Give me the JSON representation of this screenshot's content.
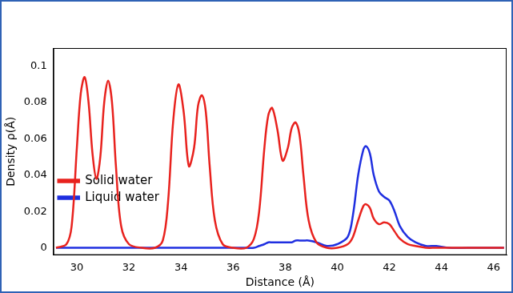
{
  "chart_data": {
    "type": "line",
    "x_label": "Distance (Å)",
    "y_label": "Density ρ(Å)",
    "x": [
      29.2,
      29.6,
      29.8,
      30.0,
      30.15,
      30.3,
      30.45,
      30.6,
      30.75,
      30.9,
      31.05,
      31.2,
      31.35,
      31.5,
      31.7,
      32.0,
      32.5,
      33.0,
      33.3,
      33.5,
      33.7,
      33.9,
      34.1,
      34.3,
      34.5,
      34.65,
      34.8,
      34.95,
      35.1,
      35.3,
      35.6,
      36.0,
      36.5,
      36.8,
      37.0,
      37.2,
      37.35,
      37.5,
      37.7,
      37.9,
      38.1,
      38.25,
      38.4,
      38.55,
      38.7,
      38.9,
      39.2,
      39.6,
      40.0,
      40.4,
      40.6,
      40.8,
      41.0,
      41.1,
      41.25,
      41.4,
      41.6,
      41.8,
      42.0,
      42.2,
      42.4,
      42.7,
      43.0,
      43.4,
      43.8,
      44.3,
      45.0,
      46.4
    ],
    "series": [
      {
        "name": "Solid water",
        "color": "#e8221e",
        "values": [
          0,
          0.002,
          0.012,
          0.055,
          0.085,
          0.094,
          0.08,
          0.052,
          0.038,
          0.05,
          0.08,
          0.092,
          0.08,
          0.045,
          0.012,
          0.002,
          0,
          0,
          0.004,
          0.025,
          0.07,
          0.09,
          0.075,
          0.045,
          0.055,
          0.078,
          0.084,
          0.075,
          0.045,
          0.015,
          0.002,
          0,
          0,
          0.005,
          0.02,
          0.055,
          0.073,
          0.077,
          0.065,
          0.048,
          0.055,
          0.066,
          0.069,
          0.062,
          0.04,
          0.015,
          0.003,
          0,
          0,
          0.002,
          0.006,
          0.015,
          0.023,
          0.024,
          0.022,
          0.016,
          0.013,
          0.014,
          0.013,
          0.009,
          0.005,
          0.002,
          0.001,
          0,
          0,
          0,
          0,
          0
        ]
      },
      {
        "name": "Liquid water",
        "color": "#1f2fe0",
        "values": [
          0,
          0,
          0,
          0,
          0,
          0,
          0,
          0,
          0,
          0,
          0,
          0,
          0,
          0,
          0,
          0,
          0,
          0,
          0,
          0,
          0,
          0,
          0,
          0,
          0,
          0,
          0,
          0,
          0,
          0,
          0,
          0,
          0,
          0,
          0.001,
          0.002,
          0.003,
          0.003,
          0.003,
          0.003,
          0.003,
          0.003,
          0.004,
          0.004,
          0.004,
          0.004,
          0.003,
          0.001,
          0.002,
          0.006,
          0.018,
          0.04,
          0.054,
          0.056,
          0.052,
          0.04,
          0.031,
          0.028,
          0.026,
          0.02,
          0.012,
          0.006,
          0.003,
          0.001,
          0.001,
          0,
          0,
          0
        ]
      }
    ],
    "xlim": [
      29.1,
      46.5
    ],
    "xticks": [
      30,
      32,
      34,
      36,
      38,
      40,
      42,
      44,
      46
    ],
    "ylim": [
      -0.004,
      0.11
    ],
    "yticks": [
      0,
      0.02,
      0.04,
      0.06,
      0.08,
      0.1
    ],
    "grid": false,
    "legend": "upper right"
  }
}
